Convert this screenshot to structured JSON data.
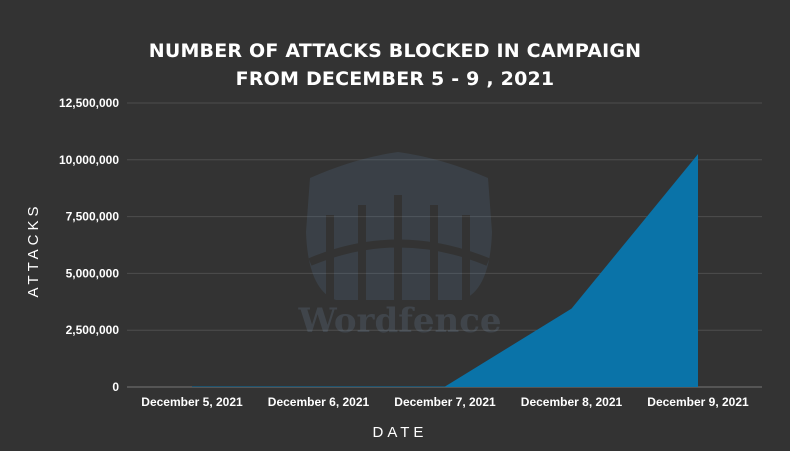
{
  "chart_data": {
    "type": "area",
    "title_lines": [
      "NUMBER OF ATTACKS BLOCKED IN CAMPAIGN",
      "FROM DECEMBER 5 - 9 , 2021"
    ],
    "xlabel": "DATE",
    "ylabel": "ATTACKS",
    "categories": [
      "December 5, 2021",
      "December 6, 2021",
      "December 7, 2021",
      "December 8, 2021",
      "December 9, 2021"
    ],
    "series": [
      {
        "values": [
          20000,
          20000,
          20000,
          3450000,
          10250000
        ]
      }
    ],
    "ylim": [
      0,
      12500000
    ],
    "yticks": [
      "0",
      "2,500,000",
      "5,000,000",
      "7,500,000",
      "10,000,000",
      "12,500,000"
    ],
    "grid": true,
    "colors": {
      "area": "#0a73a8",
      "grid": "#4e4e4e",
      "background": "#333333",
      "text": "#ffffff"
    }
  },
  "watermark": {
    "text": "Wordfence",
    "icon": "wordfence-castle-logo"
  }
}
